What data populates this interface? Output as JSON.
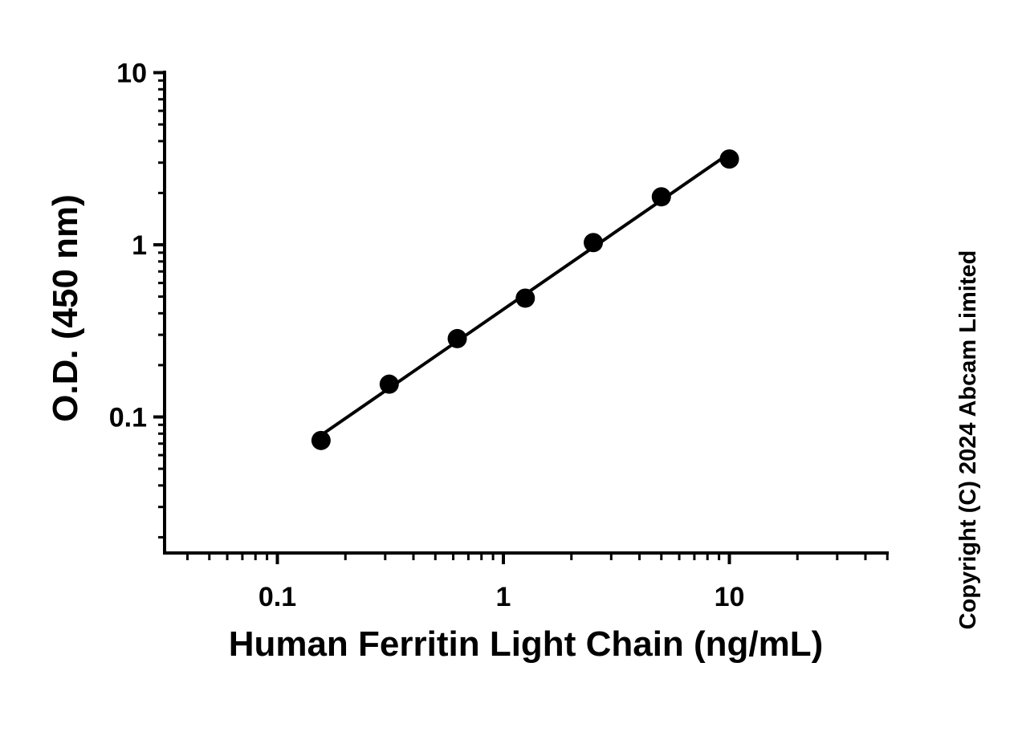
{
  "chart_data": {
    "type": "scatter",
    "xlabel": "Human Ferritin Light Chain (ng/mL)",
    "ylabel": "O.D. (450 nm)",
    "x_scale": "log",
    "y_scale": "log",
    "xlim": [
      0.035,
      50
    ],
    "ylim": [
      0.018,
      10
    ],
    "x_ticks": [
      "0.1",
      "1",
      "10"
    ],
    "y_ticks": [
      "0.1",
      "1",
      "10"
    ],
    "grid": false,
    "series": [
      {
        "x": [
          0.156,
          0.3125,
          0.625,
          1.25,
          2.5,
          5,
          10
        ],
        "y": [
          0.073,
          0.155,
          0.285,
          0.49,
          1.03,
          1.9,
          3.15
        ],
        "fit": "line"
      }
    ],
    "color": "#000000"
  },
  "copyright": "Copyright (C) 2024 Abcam Limited"
}
